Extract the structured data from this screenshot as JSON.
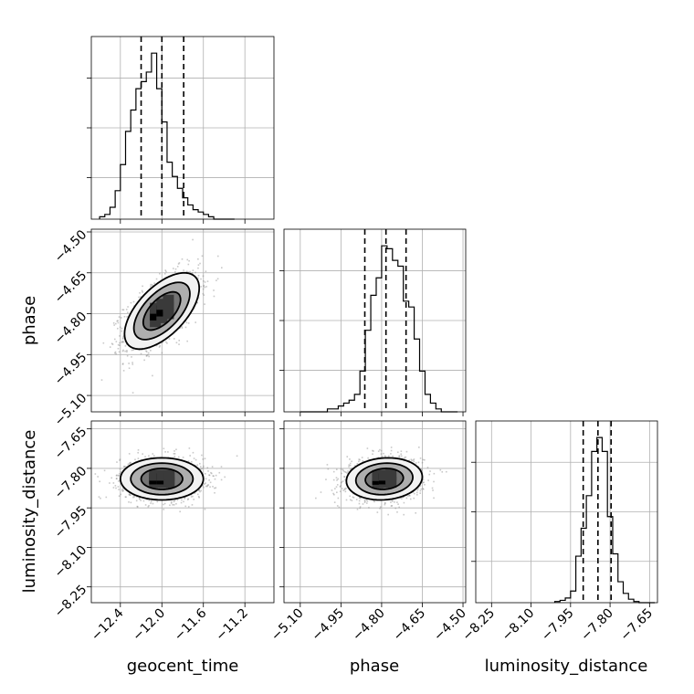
{
  "chart_data": {
    "type": "corner",
    "parameters": [
      {
        "key": "geocent_time",
        "label": "geocent_time",
        "ticks": [
          -12.4,
          -12.0,
          -11.6,
          -11.2
        ],
        "tick_labels": [
          "−12.4",
          "−12.0",
          "−11.6",
          "−11.2"
        ],
        "range": [
          -12.68,
          -10.92
        ],
        "quantiles": [
          -12.2,
          -12.0,
          -11.79
        ]
      },
      {
        "key": "phase",
        "label": "phase",
        "ticks": [
          -5.1,
          -4.95,
          -4.8,
          -4.65,
          -4.5
        ],
        "tick_labels": [
          "−5.10",
          "−4.95",
          "−4.80",
          "−4.65",
          "−4.50"
        ],
        "range": [
          -5.16,
          -4.49
        ],
        "quantiles": [
          -4.862,
          -4.784,
          -4.71
        ]
      },
      {
        "key": "luminosity_distance",
        "label": "luminosity_distance",
        "ticks": [
          -8.25,
          -8.1,
          -7.95,
          -7.8,
          -7.65
        ],
        "tick_labels": [
          "−8.25",
          "−8.10",
          "−7.95",
          "−7.80",
          "−7.65"
        ],
        "range": [
          -8.31,
          -7.62
        ],
        "quantiles": [
          -7.902,
          -7.846,
          -7.796
        ]
      }
    ],
    "histograms": [
      {
        "param": "geocent_time",
        "bin_edges": [
          -12.6,
          -12.55,
          -12.5,
          -12.45,
          -12.4,
          -12.35,
          -12.3,
          -12.25,
          -12.2,
          -12.15,
          -12.1,
          -12.05,
          -12.0,
          -11.95,
          -11.9,
          -11.85,
          -11.8,
          -11.75,
          -11.7,
          -11.65,
          -11.6,
          -11.55,
          -11.5,
          -11.45,
          -11.4,
          -11.35,
          -11.3
        ],
        "counts": [
          1,
          2,
          5,
          12,
          23,
          37,
          46,
          55,
          58,
          62,
          70,
          55,
          41,
          24,
          18,
          13,
          9,
          6,
          4,
          3,
          2,
          1,
          0,
          0,
          0,
          0
        ]
      },
      {
        "param": "phase",
        "bin_edges": [
          -5.1,
          -5.08,
          -5.06,
          -5.04,
          -5.02,
          -5.0,
          -4.98,
          -4.96,
          -4.94,
          -4.92,
          -4.9,
          -4.88,
          -4.86,
          -4.84,
          -4.82,
          -4.8,
          -4.78,
          -4.76,
          -4.74,
          -4.72,
          -4.7,
          -4.68,
          -4.66,
          -4.64,
          -4.62,
          -4.6,
          -4.58,
          -4.56,
          -4.54,
          -4.52
        ],
        "counts": [
          0,
          0,
          0,
          0,
          0,
          1,
          1,
          2,
          3,
          4,
          6,
          14,
          28,
          40,
          46,
          57,
          56,
          52,
          50,
          38,
          36,
          25,
          14,
          6,
          3,
          1,
          0,
          0,
          0
        ]
      },
      {
        "param": "luminosity_distance",
        "bin_edges": [
          -8.01,
          -7.99,
          -7.97,
          -7.95,
          -7.93,
          -7.91,
          -7.89,
          -7.87,
          -7.85,
          -7.83,
          -7.81,
          -7.79,
          -7.77,
          -7.75,
          -7.73,
          -7.71,
          -7.69,
          -7.67,
          -7.65,
          -7.63
        ],
        "counts": [
          1,
          2,
          4,
          10,
          40,
          64,
          92,
          130,
          142,
          130,
          74,
          42,
          18,
          8,
          3,
          1,
          0,
          0,
          0
        ]
      }
    ],
    "pairs": [
      {
        "x": "geocent_time",
        "y": "phase",
        "mean": [
          -12.0,
          -4.79
        ],
        "std": [
          0.18,
          0.07
        ],
        "corr": 0.6
      },
      {
        "x": "geocent_time",
        "y": "luminosity_distance",
        "mean": [
          -12.0,
          -7.84
        ],
        "std": [
          0.2,
          0.04
        ],
        "corr": 0.0
      },
      {
        "x": "phase",
        "y": "luminosity_distance",
        "mean": [
          -4.79,
          -7.84
        ],
        "std": [
          0.07,
          0.04
        ],
        "corr": 0.1
      }
    ],
    "contour_levels_sigma": [
      0.5,
      1.0,
      1.5,
      2.0
    ],
    "grid": true,
    "colors": {
      "line": "#000000",
      "grid": "#b0b0b0",
      "scatter": "#888888"
    }
  }
}
